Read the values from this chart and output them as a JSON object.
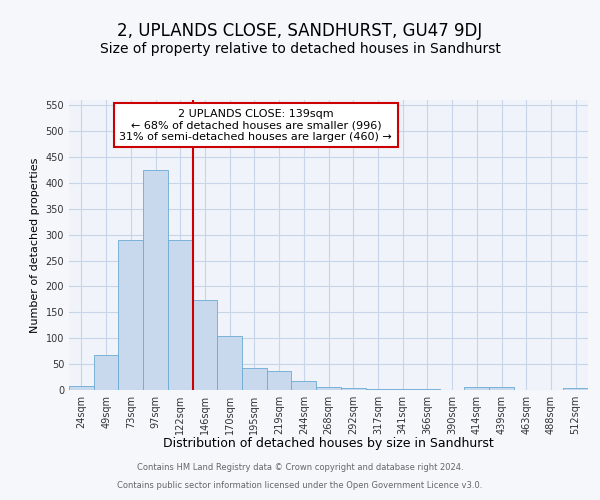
{
  "title": "2, UPLANDS CLOSE, SANDHURST, GU47 9DJ",
  "subtitle": "Size of property relative to detached houses in Sandhurst",
  "xlabel": "Distribution of detached houses by size in Sandhurst",
  "ylabel": "Number of detached properties",
  "categories": [
    "24sqm",
    "49sqm",
    "73sqm",
    "97sqm",
    "122sqm",
    "146sqm",
    "170sqm",
    "195sqm",
    "219sqm",
    "244sqm",
    "268sqm",
    "292sqm",
    "317sqm",
    "341sqm",
    "366sqm",
    "390sqm",
    "414sqm",
    "439sqm",
    "463sqm",
    "488sqm",
    "512sqm"
  ],
  "values": [
    7,
    68,
    290,
    425,
    290,
    173,
    105,
    42,
    37,
    18,
    5,
    3,
    1,
    1,
    1,
    0,
    5,
    5,
    0,
    0,
    3
  ],
  "bar_color": "#c8d9ee",
  "bar_edge_color": "#6aaad4",
  "vline_x_index": 4.5,
  "vline_color": "#cc0000",
  "annotation_box_text": "2 UPLANDS CLOSE: 139sqm\n← 68% of detached houses are smaller (996)\n31% of semi-detached houses are larger (460) →",
  "annotation_box_color": "#cc0000",
  "annotation_text_color": "#000000",
  "ylim": [
    0,
    560
  ],
  "yticks": [
    0,
    50,
    100,
    150,
    200,
    250,
    300,
    350,
    400,
    450,
    500,
    550
  ],
  "bg_color": "#f5f7fb",
  "plot_bg_color": "#f0f4fa",
  "grid_color": "#c8d4e8",
  "footer_line1": "Contains HM Land Registry data © Crown copyright and database right 2024.",
  "footer_line2": "Contains public sector information licensed under the Open Government Licence v3.0.",
  "title_fontsize": 12,
  "subtitle_fontsize": 10,
  "xlabel_fontsize": 9,
  "ylabel_fontsize": 8,
  "tick_fontsize": 7,
  "annotation_fontsize": 8
}
